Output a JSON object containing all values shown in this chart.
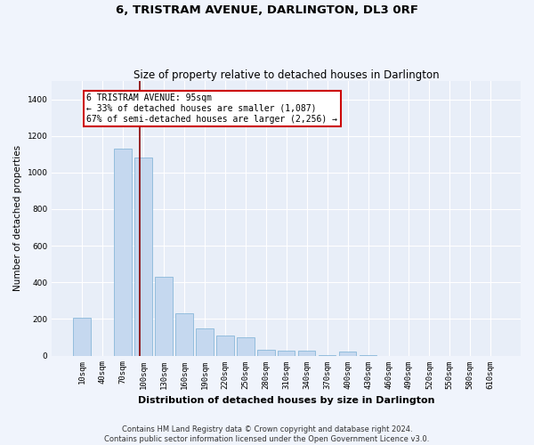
{
  "title": "6, TRISTRAM AVENUE, DARLINGTON, DL3 0RF",
  "subtitle": "Size of property relative to detached houses in Darlington",
  "xlabel": "Distribution of detached houses by size in Darlington",
  "ylabel": "Number of detached properties",
  "bar_color": "#c5d8ef",
  "bar_edge_color": "#7aafd4",
  "background_color": "#e8eef8",
  "grid_color": "#ffffff",
  "annotation_box_color": "#cc0000",
  "annotation_line1": "6 TRISTRAM AVENUE: 95sqm",
  "annotation_line2": "← 33% of detached houses are smaller (1,087)",
  "annotation_line3": "67% of semi-detached houses are larger (2,256) →",
  "vline_color": "#880000",
  "categories": [
    "10sqm",
    "40sqm",
    "70sqm",
    "100sqm",
    "130sqm",
    "160sqm",
    "190sqm",
    "220sqm",
    "250sqm",
    "280sqm",
    "310sqm",
    "340sqm",
    "370sqm",
    "400sqm",
    "430sqm",
    "460sqm",
    "490sqm",
    "520sqm",
    "550sqm",
    "580sqm",
    "610sqm"
  ],
  "values": [
    205,
    0,
    1130,
    1080,
    430,
    230,
    150,
    110,
    100,
    30,
    25,
    25,
    5,
    20,
    5,
    0,
    0,
    0,
    0,
    0,
    0
  ],
  "ylim": [
    0,
    1500
  ],
  "yticks": [
    0,
    200,
    400,
    600,
    800,
    1000,
    1200,
    1400
  ],
  "footer": "Contains HM Land Registry data © Crown copyright and database right 2024.\nContains public sector information licensed under the Open Government Licence v3.0.",
  "title_fontsize": 9.5,
  "subtitle_fontsize": 8.5,
  "ylabel_fontsize": 7.5,
  "xlabel_fontsize": 8,
  "tick_fontsize": 6.5,
  "footer_fontsize": 6,
  "annotation_fontsize": 7
}
